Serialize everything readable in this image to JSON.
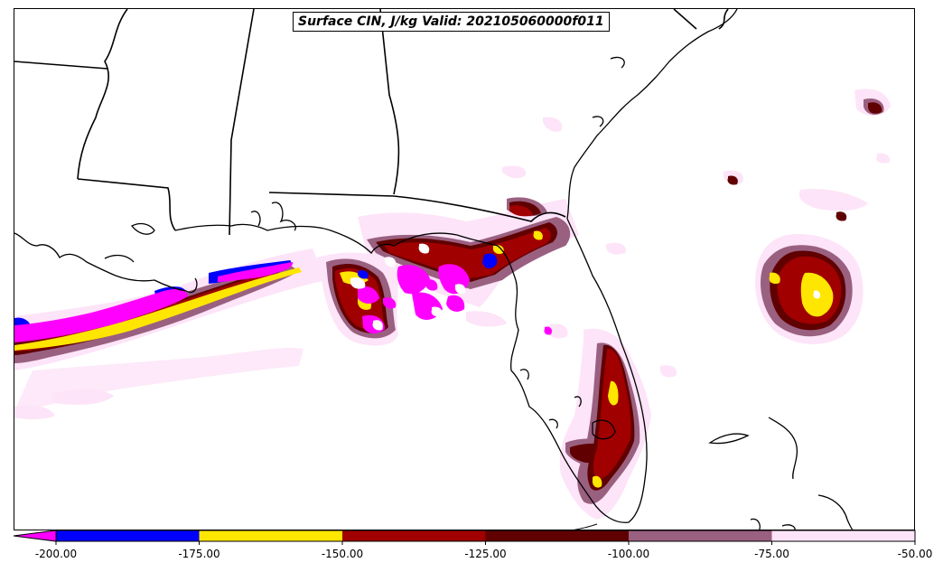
{
  "title": "Surface CIN, J/kg Valid: 202105060000f011",
  "colorbar": {
    "min": -200,
    "max": -50,
    "extend": "min",
    "extend_color": "#ff00ff",
    "ticks": [
      "-200.00",
      "-175.00",
      "-150.00",
      "-125.00",
      "-100.00",
      "-75.00",
      "-50.00"
    ],
    "bins": [
      {
        "from": -200,
        "to": -175,
        "color": "#0000ff"
      },
      {
        "from": -175,
        "to": -150,
        "color": "#ffe600"
      },
      {
        "from": -150,
        "to": -125,
        "color": "#a00000"
      },
      {
        "from": -125,
        "to": -100,
        "color": "#600000"
      },
      {
        "from": -100,
        "to": -75,
        "color": "#9a6080"
      },
      {
        "from": -75,
        "to": -50,
        "color": "#fde4f8"
      }
    ]
  }
}
